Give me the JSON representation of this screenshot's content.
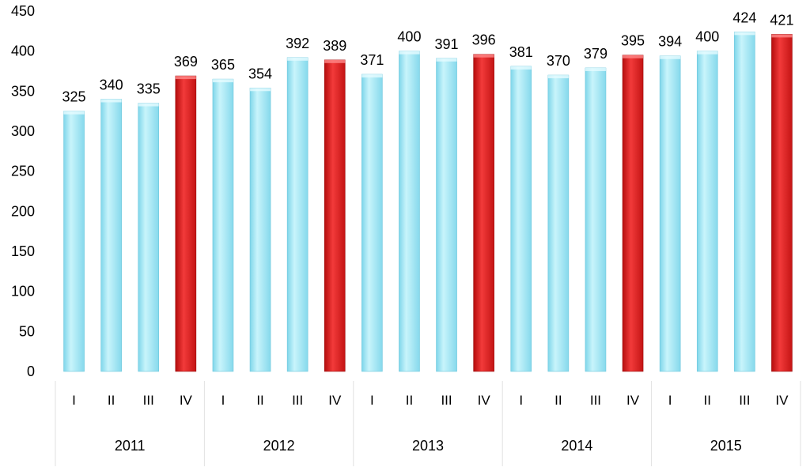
{
  "chart_data": {
    "type": "bar",
    "title": "",
    "xlabel": "",
    "ylabel": "",
    "ylim": [
      0,
      450
    ],
    "yticks": [
      0,
      50,
      100,
      150,
      200,
      250,
      300,
      350,
      400,
      450
    ],
    "grid": false,
    "legend": "none",
    "quarters": [
      "I",
      "II",
      "III",
      "IV",
      "I",
      "II",
      "III",
      "IV",
      "I",
      "II",
      "III",
      "IV",
      "I",
      "II",
      "III",
      "IV",
      "I",
      "II",
      "III",
      "IV"
    ],
    "years": [
      "2011",
      "2012",
      "2013",
      "2014",
      "2015"
    ],
    "values": [
      325,
      340,
      335,
      369,
      365,
      354,
      392,
      389,
      371,
      400,
      391,
      396,
      381,
      370,
      379,
      395,
      394,
      400,
      424,
      421
    ],
    "colors": {
      "regular": "#9fe6f3",
      "highlight": "#e11d1d"
    },
    "highlight_quarter": "IV"
  }
}
